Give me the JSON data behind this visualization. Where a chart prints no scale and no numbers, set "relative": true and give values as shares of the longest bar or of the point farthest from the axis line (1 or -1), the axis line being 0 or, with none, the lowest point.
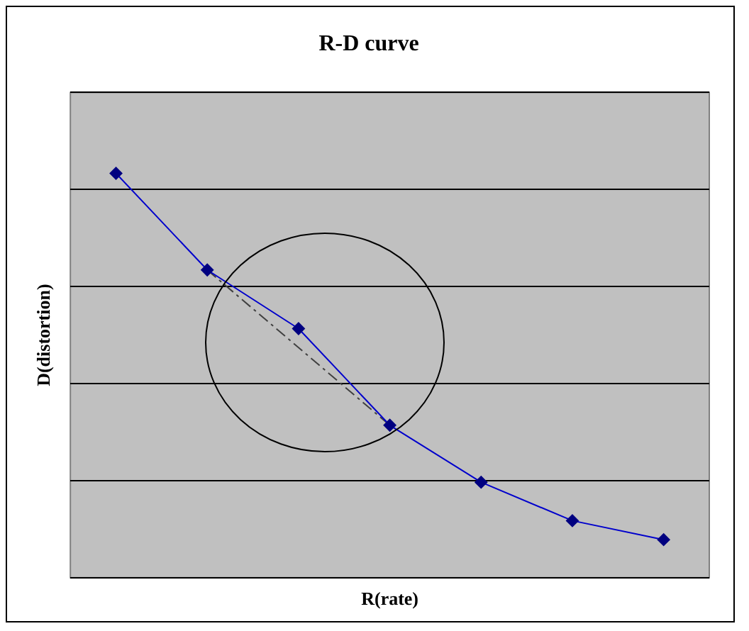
{
  "chart_data": {
    "type": "line",
    "title": "R-D curve",
    "xlabel": "R(rate)",
    "ylabel": "D(distortion)",
    "relative": true,
    "grid": "y",
    "legend": false,
    "tick_labels": false,
    "categories": [
      null,
      null,
      null,
      null,
      null,
      null,
      null
    ],
    "series": [
      {
        "color": "#0000cc",
        "values": [
          1,
          0.761,
          0.616,
          0.377,
          0.236,
          0.141,
          0.094
        ],
        "marker": "diamond",
        "line_style": "solid"
      },
      {
        "color": "#404040",
        "values": [
          null,
          0.761,
          null,
          0.377,
          null,
          null,
          null
        ],
        "line_style": "dashed"
      }
    ]
  }
}
